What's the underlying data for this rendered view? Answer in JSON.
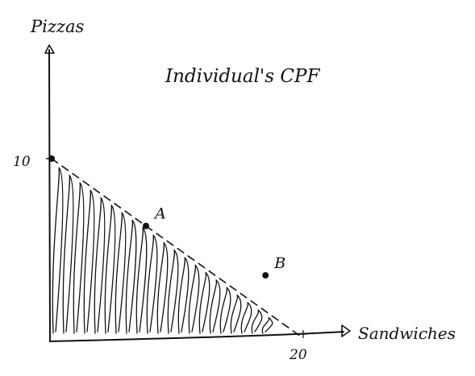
{
  "chart_data": {
    "type": "area",
    "title": "Individual's CPF",
    "xlabel": "Sandwiches",
    "ylabel": "Pizzas",
    "xlim": [
      0,
      20
    ],
    "ylim": [
      0,
      10
    ],
    "x_tick_labels": [
      "20"
    ],
    "y_tick_labels": [
      "10"
    ],
    "frontier": {
      "x": [
        0,
        20
      ],
      "y": [
        10,
        0
      ],
      "style": "dashed"
    },
    "shaded_region": "area under frontier",
    "points": [
      {
        "label": "A",
        "x": 7.5,
        "y": 6.25
      },
      {
        "label": "B",
        "x": 17,
        "y": 3.5
      }
    ],
    "grid": false,
    "colors": {
      "ink": "#111111",
      "background": "#ffffff"
    }
  }
}
